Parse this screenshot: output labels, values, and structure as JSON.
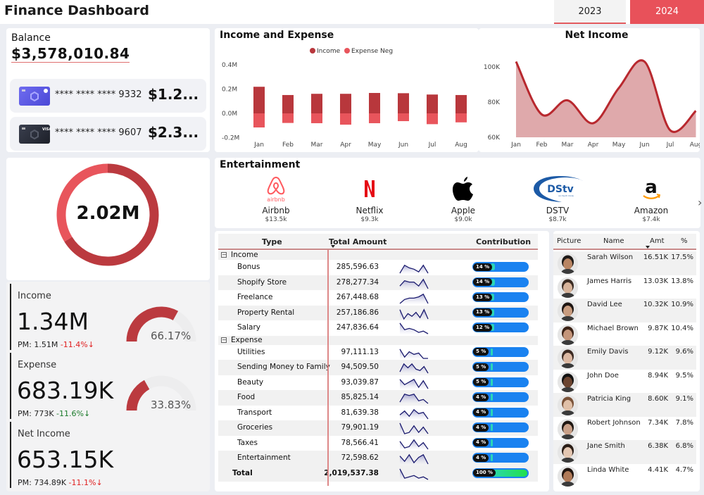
{
  "header": {
    "title": "Finance Dashboard",
    "years": [
      {
        "label": "2023",
        "selected": false
      },
      {
        "label": "2024",
        "selected": true
      }
    ]
  },
  "balance": {
    "label": "Balance",
    "value": "$3,578,010.84",
    "cards": [
      {
        "number": "**** **** **** 9332",
        "amount": "$1.2...",
        "style": "purple"
      },
      {
        "number": "**** **** **** 9607",
        "amount": "$2.3...",
        "style": "dark"
      }
    ]
  },
  "donut": {
    "center_label": "2.02M",
    "segments": [
      {
        "name": "Income",
        "percent": 66.17,
        "color": "#bb3a3f"
      },
      {
        "name": "Expense",
        "percent": 33.83,
        "color": "#e8555c"
      }
    ]
  },
  "kpis": [
    {
      "label": "Income",
      "value": "1.34M",
      "pm_label": "PM: 1.51M",
      "change": "-11.4%",
      "change_arrow": "↓",
      "change_type": "negative",
      "gauge_percent": 66.17,
      "gauge_label": "66.17%"
    },
    {
      "label": "Expense",
      "value": "683.19K",
      "pm_label": "PM: 773K",
      "change": "-11.6%",
      "change_arrow": "↓",
      "change_type": "positive",
      "gauge_percent": 33.83,
      "gauge_label": "33.83%"
    },
    {
      "label": "Net Income",
      "value": "653.15K",
      "pm_label": "PM: 734.89K",
      "change": "-11.1%",
      "change_arrow": "↓",
      "change_type": "negative"
    }
  ],
  "chart_data": [
    {
      "type": "bar",
      "title": "Income and Expense",
      "categories": [
        "Jan",
        "Feb",
        "Mar",
        "Apr",
        "May",
        "Jun",
        "Jul",
        "Aug"
      ],
      "series": [
        {
          "name": "Income",
          "color": "#b8373c",
          "values": [
            0.219,
            0.151,
            0.161,
            0.161,
            0.168,
            0.166,
            0.155,
            0.151
          ]
        },
        {
          "name": "Expense Neg",
          "color": "#e8555c",
          "values": [
            -0.116,
            -0.079,
            -0.081,
            -0.093,
            -0.081,
            -0.064,
            -0.089,
            -0.074
          ]
        }
      ],
      "yticks": [
        "0.4M",
        "0.2M",
        "0.0M",
        "-0.2M"
      ],
      "ylim": [
        -0.2,
        0.4
      ],
      "ylabel": "",
      "xlabel": "",
      "legend": "top-center",
      "grid": false
    },
    {
      "type": "area",
      "title": "Net Income",
      "categories": [
        "Jan",
        "Feb",
        "Mar",
        "Apr",
        "May",
        "Jun",
        "Jul",
        "Aug"
      ],
      "series": [
        {
          "name": "Net Income",
          "color": "#b8282e",
          "fill": "#dfa9ab",
          "values": [
            103000,
            73000,
            81000,
            68000,
            88000,
            103000,
            64000,
            75000
          ]
        }
      ],
      "yticks": [
        "100K",
        "80K",
        "60K"
      ],
      "ylim": [
        60000,
        105000
      ],
      "ylabel": "",
      "xlabel": "",
      "grid": false
    }
  ],
  "entertainment": {
    "title": "Entertainment",
    "items": [
      {
        "name": "Airbnb",
        "amount": "$13.5k",
        "logo": "airbnb-logo"
      },
      {
        "name": "Netflix",
        "amount": "$9.3k",
        "logo": "netflix-logo"
      },
      {
        "name": "Apple",
        "amount": "$9.0k",
        "logo": "apple-logo"
      },
      {
        "name": "DSTV",
        "amount": "$8.7k",
        "logo": "dstv-logo"
      },
      {
        "name": "Amazon",
        "amount": "$7.4k",
        "logo": "amazon-logo"
      }
    ],
    "next_icon": "›"
  },
  "table": {
    "headers": {
      "type": "Type",
      "amount": "Total Amount",
      "contribution": "Contribution"
    },
    "groups": [
      {
        "name": "Income",
        "expander": "−",
        "rows": [
          {
            "type": "Bonus",
            "amount": "285,596.63",
            "contribution": "14 %",
            "pct": 14,
            "spark": [
              9,
              3,
              5,
              6,
              8,
              3,
              9
            ]
          },
          {
            "type": "Shopify Store",
            "amount": "278,277.34",
            "contribution": "14 %",
            "pct": 14,
            "spark": [
              7,
              3,
              4,
              4,
              7,
              2,
              9
            ]
          },
          {
            "type": "Freelance",
            "amount": "267,448.68",
            "contribution": "13 %",
            "pct": 13,
            "spark": [
              9,
              6,
              5,
              5,
              4,
              2,
              9
            ]
          },
          {
            "type": "Property Rental",
            "amount": "257,186.86",
            "contribution": "13 %",
            "pct": 13,
            "spark": [
              2,
              9,
              5,
              7,
              4,
              8,
              2,
              9
            ]
          },
          {
            "type": "Salary",
            "amount": "247,836.64",
            "contribution": "12 %",
            "pct": 12,
            "spark": [
              1,
              6,
              5,
              6,
              8,
              7,
              9
            ]
          }
        ]
      },
      {
        "name": "Expense",
        "expander": "−",
        "rows": [
          {
            "type": "Utilities",
            "amount": "97,111.13",
            "contribution": "5 %",
            "pct": 5,
            "spark": [
              2,
              8,
              4,
              6,
              5,
              9,
              9
            ]
          },
          {
            "type": "Sending Money to Family",
            "amount": "94,509.50",
            "contribution": "5 %",
            "pct": 5,
            "spark": [
              8,
              2,
              5,
              2,
              6,
              7,
              4,
              9
            ]
          },
          {
            "type": "Beauty",
            "amount": "93,039.87",
            "contribution": "5 %",
            "pct": 5,
            "spark": [
              2,
              6,
              4,
              2,
              8,
              3,
              9
            ]
          },
          {
            "type": "Food",
            "amount": "85,825.14",
            "contribution": "4 %",
            "pct": 4,
            "spark": [
              8,
              2,
              3,
              2,
              7,
              6,
              9
            ]
          },
          {
            "type": "Transport",
            "amount": "81,639.38",
            "contribution": "4 %",
            "pct": 4,
            "spark": [
              6,
              3,
              7,
              2,
              5,
              4,
              9
            ]
          },
          {
            "type": "Groceries",
            "amount": "79,901.19",
            "contribution": "4 %",
            "pct": 4,
            "spark": [
              1,
              9,
              8,
              3,
              8,
              4,
              9
            ]
          },
          {
            "type": "Taxes",
            "amount": "78,566.41",
            "contribution": "4 %",
            "pct": 4,
            "spark": [
              3,
              8,
              7,
              2,
              7,
              4,
              9
            ]
          },
          {
            "type": "Entertainment",
            "amount": "72,598.62",
            "contribution": "4 %",
            "pct": 4,
            "spark": [
              3,
              7,
              2,
              8,
              4,
              2,
              9
            ]
          }
        ]
      }
    ],
    "total": {
      "label": "Total",
      "amount": "2,019,537.38",
      "contribution": "100 %",
      "pct": 100,
      "spark": [
        1,
        8,
        7,
        6,
        8,
        7,
        9
      ]
    }
  },
  "people": {
    "headers": {
      "picture": "Picture",
      "name": "Name",
      "amt": "Amt",
      "pct": "%"
    },
    "rows": [
      {
        "name": "Sarah Wilson",
        "amt": "16.51K",
        "pct": "17.5%",
        "skin": "#b98563",
        "hair": "#1e1a18"
      },
      {
        "name": "James Harris",
        "amt": "13.03K",
        "pct": "13.8%",
        "skin": "#d7b39a",
        "hair": "#3a2b22"
      },
      {
        "name": "David Lee",
        "amt": "10.32K",
        "pct": "10.9%",
        "skin": "#c89c7f",
        "hair": "#1d1512"
      },
      {
        "name": "Michael Brown",
        "amt": "9.87K",
        "pct": "10.4%",
        "skin": "#c4957a",
        "hair": "#3b2216"
      },
      {
        "name": "Emily Davis",
        "amt": "9.12K",
        "pct": "9.6%",
        "skin": "#dcb8a2",
        "hair": "#3c2a22"
      },
      {
        "name": "John Doe",
        "amt": "8.94K",
        "pct": "9.5%",
        "skin": "#6b4430",
        "hair": "#111"
      },
      {
        "name": "Patricia King",
        "amt": "8.60K",
        "pct": "9.1%",
        "skin": "#e0c0a8",
        "hair": "#7a5238"
      },
      {
        "name": "Robert Johnson",
        "amt": "7.34K",
        "pct": "7.8%",
        "skin": "#c9a088",
        "hair": "#1f1712"
      },
      {
        "name": "Jane Smith",
        "amt": "6.38K",
        "pct": "6.8%",
        "skin": "#e4c7b2",
        "hair": "#2a1d16"
      },
      {
        "name": "Linda White",
        "amt": "4.41K",
        "pct": "4.7%",
        "skin": "#b07a58",
        "hair": "#201510"
      }
    ]
  }
}
